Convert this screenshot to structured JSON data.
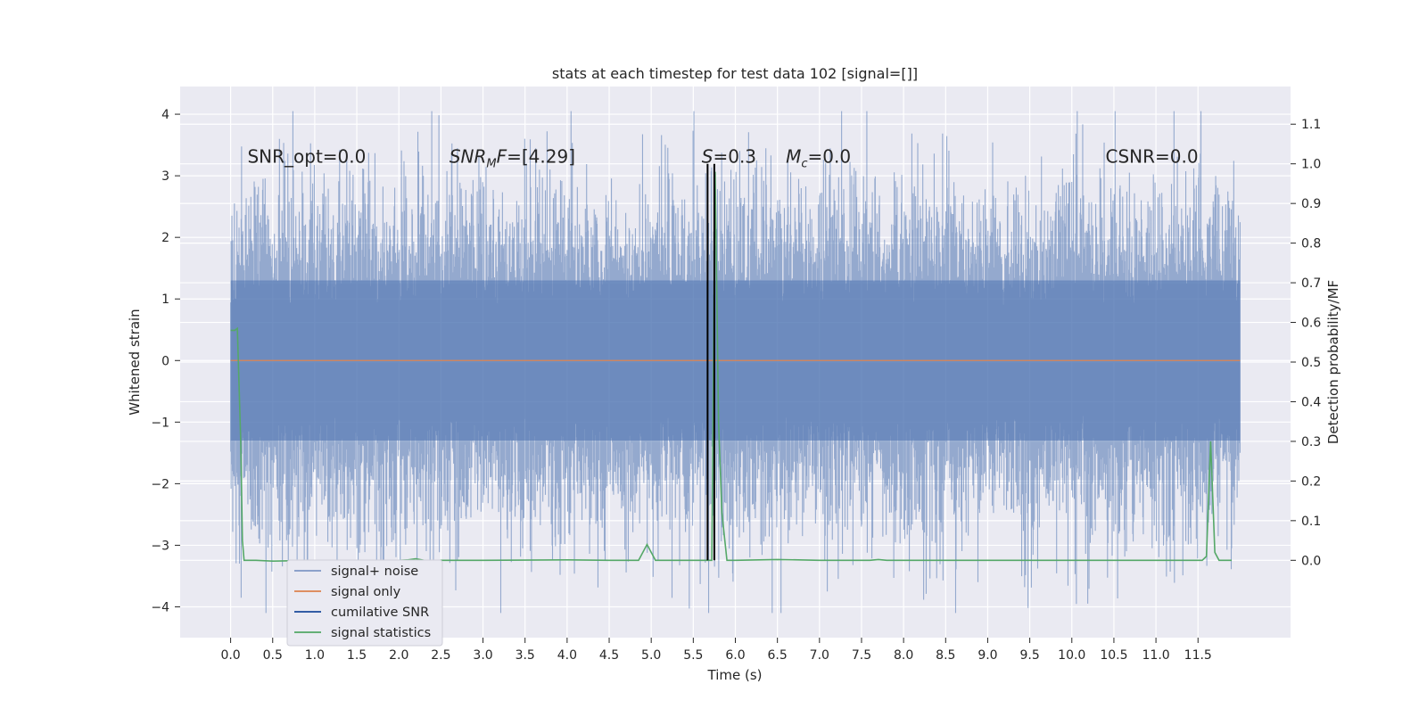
{
  "chart_data": {
    "type": "line",
    "title": "stats at each timestep for test data 102 [signal=[]]",
    "xlabel": "Time (s)",
    "ylabel_left": "Whitened strain",
    "ylabel_right": "Detection probability/MF",
    "xlim": [
      -0.6,
      12.6
    ],
    "ylim_left": [
      -4.5,
      4.45
    ],
    "ylim_right": [
      -0.195,
      1.195
    ],
    "x_ticks": [
      0.0,
      0.5,
      1.0,
      1.5,
      2.0,
      2.5,
      3.0,
      3.5,
      4.0,
      4.5,
      5.0,
      5.5,
      6.0,
      6.5,
      7.0,
      7.5,
      8.0,
      8.5,
      9.0,
      9.5,
      10.0,
      10.5,
      11.0,
      11.5
    ],
    "x_tick_labels": [
      "0.0",
      "0.5",
      "1.0",
      "1.5",
      "2.0",
      "2.5",
      "3.0",
      "3.5",
      "4.0",
      "4.5",
      "5.0",
      "5.5",
      "6.0",
      "6.5",
      "7.0",
      "7.5",
      "8.0",
      "8.5",
      "9.0",
      "9.5",
      "10.0",
      "10.5",
      "11.0",
      "11.5"
    ],
    "y_left_ticks": [
      -4,
      -3,
      -2,
      -1,
      0,
      1,
      2,
      3,
      4
    ],
    "y_left_tick_labels": [
      "−4",
      "−3",
      "−2",
      "−1",
      "0",
      "1",
      "2",
      "3",
      "4"
    ],
    "y_right_ticks": [
      0.0,
      0.1,
      0.2,
      0.3,
      0.4,
      0.5,
      0.6,
      0.7,
      0.8,
      0.9,
      1.0,
      1.1
    ],
    "y_right_tick_labels": [
      "0.0",
      "0.1",
      "0.2",
      "0.3",
      "0.4",
      "0.5",
      "0.6",
      "0.7",
      "0.8",
      "0.9",
      "1.0",
      "1.1"
    ],
    "grid": true,
    "legend_position": "lower-left",
    "noise": {
      "t_start": 0.0,
      "t_end": 12.0,
      "core_low": -1.3,
      "core_high": 1.3,
      "min_peak": -4.1,
      "max_peak": 4.05
    },
    "vertical_lines": [
      {
        "x": 5.67,
        "y_from": 0.0,
        "y_to": 1.0,
        "color": "#000000"
      },
      {
        "x": 5.75,
        "y_from": 0.0,
        "y_to": 1.0,
        "color": "#000000"
      }
    ],
    "series": [
      {
        "name": "signal+ noise",
        "color": "#4c72b0",
        "kind": "noise"
      },
      {
        "name": "signal only",
        "color": "#dd8452",
        "kind": "line",
        "axis": "left",
        "points": [
          [
            0.0,
            0.0
          ],
          [
            12.0,
            0.0
          ]
        ]
      },
      {
        "name": "cumilative SNR",
        "color": "#1f4e9c",
        "kind": "line",
        "axis": "right",
        "points": []
      },
      {
        "name": "signal statistics",
        "color": "#55a868",
        "kind": "line",
        "axis": "right",
        "points": [
          [
            0.0,
            0.58
          ],
          [
            0.05,
            0.58
          ],
          [
            0.08,
            0.585
          ],
          [
            0.12,
            0.3
          ],
          [
            0.14,
            0.05
          ],
          [
            0.16,
            0.0
          ],
          [
            0.3,
            0.0
          ],
          [
            0.5,
            -0.002
          ],
          [
            1.0,
            0.0
          ],
          [
            1.5,
            0.0
          ],
          [
            2.0,
            0.0
          ],
          [
            2.1,
            0.001
          ],
          [
            2.2,
            0.004
          ],
          [
            2.3,
            0.0
          ],
          [
            3.0,
            0.0
          ],
          [
            4.0,
            0.001
          ],
          [
            4.5,
            0.0
          ],
          [
            4.85,
            0.0
          ],
          [
            4.95,
            0.04
          ],
          [
            5.05,
            0.0
          ],
          [
            5.5,
            0.0
          ],
          [
            5.72,
            0.0
          ],
          [
            5.76,
            0.98
          ],
          [
            5.8,
            0.35
          ],
          [
            5.84,
            0.12
          ],
          [
            5.9,
            0.0
          ],
          [
            6.0,
            0.0
          ],
          [
            6.5,
            0.002
          ],
          [
            7.0,
            0.0
          ],
          [
            7.6,
            0.0
          ],
          [
            7.7,
            0.002
          ],
          [
            7.8,
            0.0
          ],
          [
            9.0,
            0.0
          ],
          [
            10.0,
            0.0
          ],
          [
            11.0,
            0.0
          ],
          [
            11.55,
            0.0
          ],
          [
            11.6,
            0.01
          ],
          [
            11.65,
            0.3
          ],
          [
            11.7,
            0.02
          ],
          [
            11.75,
            0.0
          ],
          [
            11.9,
            0.0
          ]
        ]
      }
    ],
    "annotations": [
      {
        "id": "snr-opt",
        "x": 0.2,
        "y_right": 1.0,
        "text": "SNR_opt=0.0",
        "italic_prefix": ""
      },
      {
        "id": "snr-mf",
        "x": 2.6,
        "y_right": 1.0,
        "prefix_main": "SNR",
        "prefix_sub": "M",
        "prefix_tail": "F",
        "text": "=[4.29]"
      },
      {
        "id": "s-stat",
        "x": 5.6,
        "y_right": 1.0,
        "prefix_main": "S",
        "prefix_sub": "",
        "prefix_tail": "",
        "text": "=0.3"
      },
      {
        "id": "m-c",
        "x": 6.6,
        "y_right": 1.0,
        "prefix_main": "M",
        "prefix_sub": "c",
        "prefix_tail": "",
        "text": "=0.0"
      },
      {
        "id": "csnr",
        "x": 10.4,
        "y_right": 1.0,
        "text": "CSNR=0.0",
        "italic_prefix": ""
      }
    ]
  }
}
